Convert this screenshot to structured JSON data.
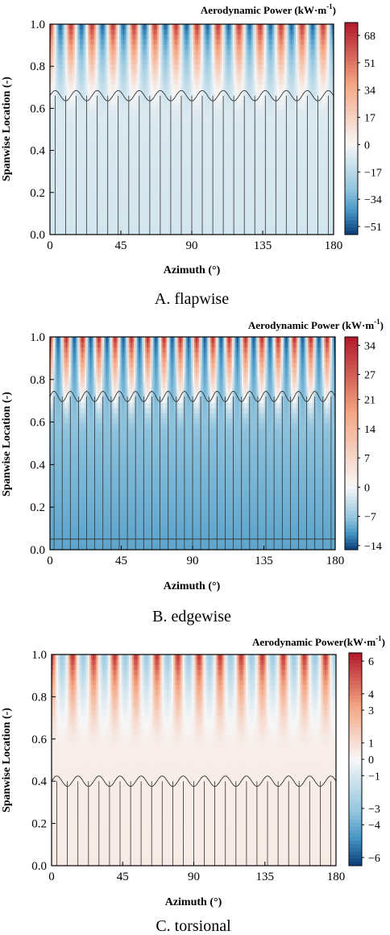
{
  "chart_data": [
    {
      "type": "heatmap",
      "panel_label": "A. flapwise",
      "colorbar_title": "Aerodynamic Power (kW·m",
      "colorbar_title_sup": "-1",
      "colorbar_title_end": ")",
      "xlabel": "Azimuth (°)",
      "ylabel": "Spanwise Location (-)",
      "xlim": [
        0,
        180
      ],
      "ylim": [
        0,
        1.0
      ],
      "xticks": [
        "0",
        "45",
        "90",
        "135",
        "180"
      ],
      "yticks": [
        "0.0",
        "0.2",
        "0.4",
        "0.6",
        "0.8",
        "1.0"
      ],
      "colorbar_ticks": [
        "68",
        "51",
        "34",
        "17",
        "0",
        "−17",
        "−34",
        "−51"
      ],
      "colorbar_range": [
        -56,
        76
      ],
      "oscillation_cycles": 13.5,
      "contour_level": 0,
      "contour_top_span": 0.66,
      "tip_peak": 68,
      "tip_trough": -51,
      "root_value": -10,
      "colors": {
        "positive": "#b2182b",
        "zero": "#f7f7f7",
        "negative": "#0b3c78"
      }
    },
    {
      "type": "heatmap",
      "panel_label": "B. edgewise",
      "colorbar_title": "Aerodynamic Power (kW·m",
      "colorbar_title_sup": "-1",
      "colorbar_title_end": ")",
      "xlabel": "Azimuth (°)",
      "ylabel": "Spanwise Location (-)",
      "xlim": [
        0,
        180
      ],
      "ylim": [
        0,
        1.0
      ],
      "xticks": [
        "0",
        "45",
        "90",
        "135",
        "180"
      ],
      "yticks": [
        "0.0",
        "0.2",
        "0.4",
        "0.6",
        "0.8",
        "1.0"
      ],
      "colorbar_ticks": [
        "34",
        "27",
        "21",
        "14",
        "7",
        "0",
        "−7",
        "−14"
      ],
      "colorbar_range": [
        -15,
        36
      ],
      "oscillation_cycles": 17.5,
      "contour_level": 0,
      "contour_top_span": 0.72,
      "contour_bottom_span": 0.05,
      "tip_peak": 34,
      "tip_trough": -14,
      "root_value": -10,
      "colors": {
        "positive": "#b2182b",
        "zero": "#f7f7f7",
        "negative": "#0b3c78"
      }
    },
    {
      "type": "heatmap",
      "panel_label": "C. torsional",
      "colorbar_title": "Aerodynamic Power(kW·m",
      "colorbar_title_sup": "-1",
      "colorbar_title_end": ")",
      "xlabel": "Azimuth (°)",
      "ylabel": "Spanwise Location (-)",
      "xlim": [
        0,
        180
      ],
      "ylim": [
        0,
        1.0
      ],
      "xticks": [
        "0",
        "45",
        "90",
        "135",
        "180"
      ],
      "yticks": [
        "0.0",
        "0.2",
        "0.4",
        "0.6",
        "0.8",
        "1.0"
      ],
      "colorbar_ticks": [
        "6",
        "4",
        "3",
        "1",
        "0",
        "−1",
        "−3",
        "−4",
        "−6"
      ],
      "colorbar_range": [
        -6.5,
        6.5
      ],
      "oscillation_cycles": 13.5,
      "contour_level": 0,
      "contour_top_span": 0.4,
      "tip_peak": 6,
      "tip_trough": -3,
      "root_value": 0.5,
      "colors": {
        "positive": "#b2182b",
        "zero": "#f7f7f7",
        "negative": "#0b3c78"
      }
    }
  ]
}
